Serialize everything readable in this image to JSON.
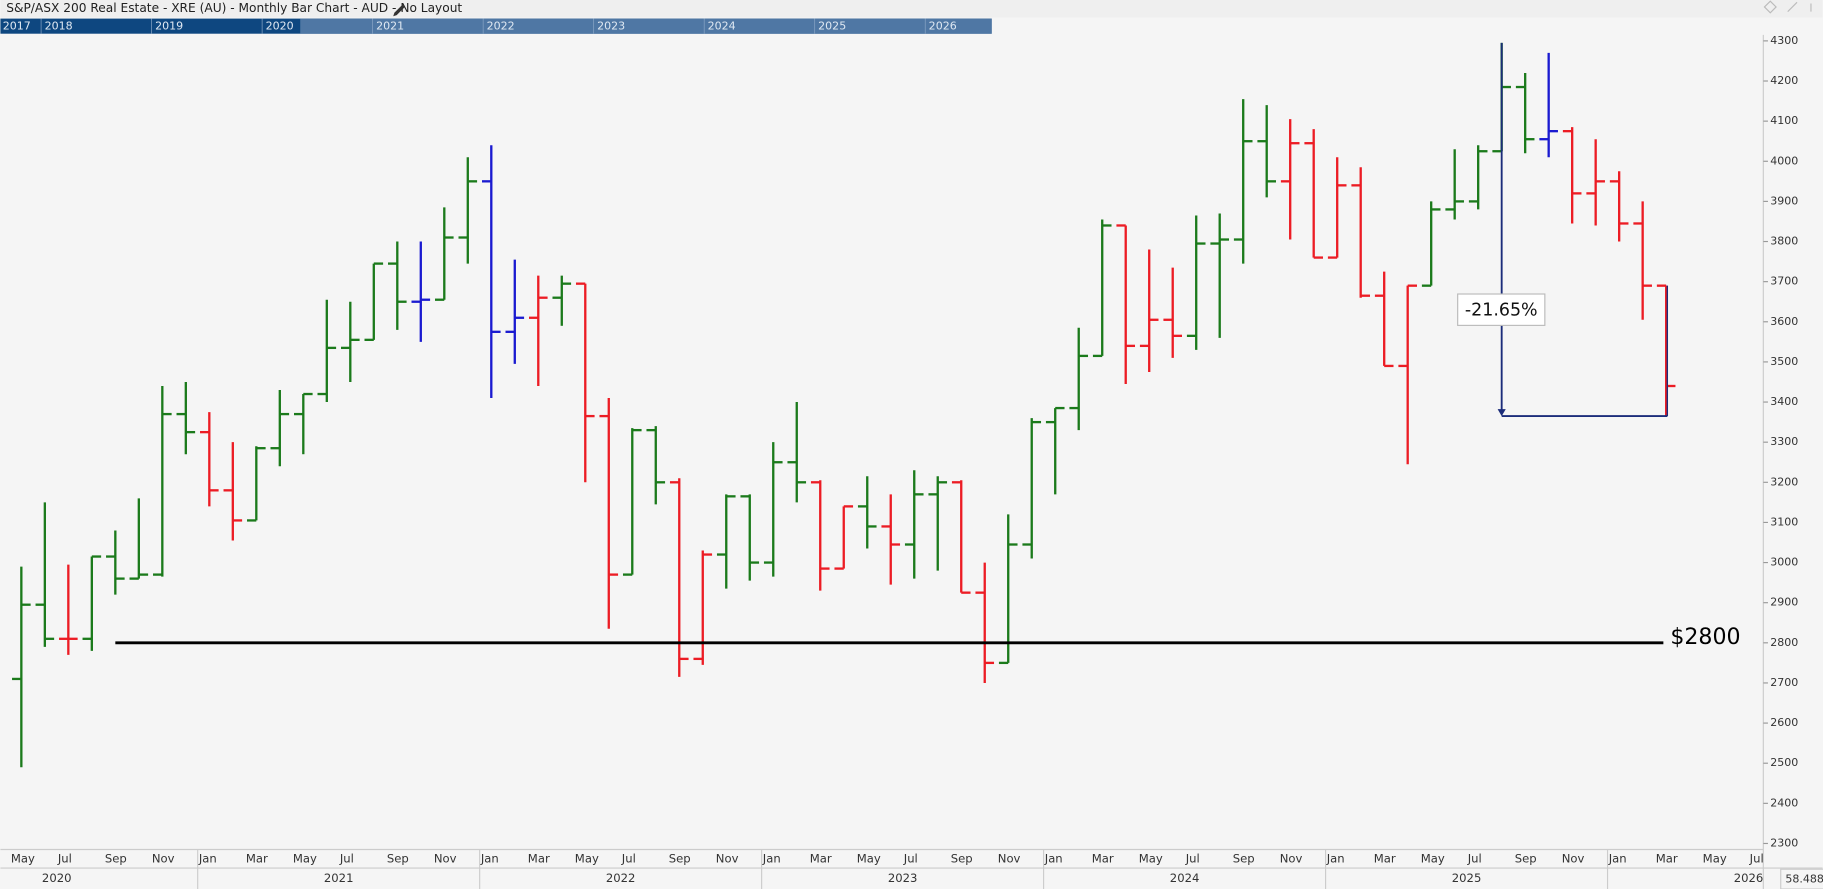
{
  "header": {
    "title": "S&P/ASX 200 Real Estate - XRE (AU) - Monthly Bar Chart - AUD - No Layout",
    "navigator_years": [
      "2017",
      "2018",
      "2019",
      "2020",
      "2021",
      "2022",
      "2023",
      "2024",
      "2025",
      "2026"
    ]
  },
  "chart_data": {
    "type": "ohlc",
    "categories": [
      "May",
      null,
      "Jul",
      null,
      "Sep",
      null,
      "Nov",
      null,
      "Jan",
      null,
      "Mar",
      null,
      "May",
      null,
      "Jul",
      null,
      "Sep",
      null,
      "Nov",
      null,
      "Jan",
      null,
      "Mar",
      null,
      "May",
      null,
      "Jul",
      null,
      "Sep",
      null,
      "Nov",
      null,
      "Jan",
      null,
      "Mar",
      null,
      "May",
      null,
      "Jul",
      null,
      "Sep",
      null,
      "Nov",
      null,
      "Jan",
      null,
      "Mar",
      null,
      "May",
      null,
      "Jul",
      null,
      "Sep",
      null,
      "Nov",
      null,
      "Jan",
      null,
      "Mar",
      null,
      "May",
      null,
      "Jul",
      null,
      "Sep",
      null,
      "Nov",
      null,
      "Jan",
      null,
      "Mar",
      null,
      "May",
      null,
      "Jul"
    ],
    "year_labels": [
      "2020",
      "2021",
      "2022",
      "2023",
      "2024",
      "2025",
      "2026"
    ],
    "open": [
      2710,
      2895,
      2810,
      2810,
      3015,
      2960,
      2970,
      3370,
      3325,
      3180,
      3105,
      3285,
      3370,
      3420,
      3535,
      3555,
      3745,
      3650,
      3655,
      3810,
      3950,
      3575,
      3610,
      3660,
      3695,
      3365,
      2970,
      3330,
      3200,
      2760,
      3020,
      3165,
      3000,
      3250,
      3200,
      2985,
      3140,
      3090,
      3045,
      3170,
      3200,
      2925,
      2750,
      3045,
      3350,
      3385,
      3515,
      3840,
      3540,
      3605,
      3565,
      3795,
      3805,
      4050,
      3950,
      4045,
      3760,
      3940,
      3665,
      3490,
      3690,
      3880,
      3900,
      4025,
      4185,
      4055,
      4075,
      3920,
      3950,
      3845,
      3690,
      null,
      null,
      null,
      null
    ],
    "high": [
      2990,
      3150,
      2995,
      3015,
      3080,
      3160,
      3440,
      3450,
      3375,
      3300,
      3290,
      3430,
      3420,
      3655,
      3650,
      3745,
      3800,
      3800,
      3885,
      4010,
      4040,
      3755,
      3715,
      3715,
      3695,
      3410,
      3335,
      3340,
      3210,
      3030,
      3170,
      3170,
      3300,
      3400,
      3205,
      3140,
      3215,
      3170,
      3230,
      3215,
      3205,
      3000,
      3120,
      3360,
      3385,
      3585,
      3855,
      3840,
      3780,
      3735,
      3865,
      3870,
      4155,
      4140,
      4105,
      4080,
      4010,
      3985,
      3725,
      3690,
      3900,
      4030,
      4040,
      4295,
      4220,
      4270,
      4085,
      4055,
      3975,
      3900,
      3690,
      null,
      null,
      null,
      null
    ],
    "low": [
      2490,
      2790,
      2770,
      2780,
      2920,
      2960,
      2965,
      3270,
      3140,
      3055,
      3105,
      3240,
      3270,
      3400,
      3450,
      3555,
      3580,
      3550,
      3655,
      3745,
      3410,
      3495,
      3440,
      3590,
      3200,
      2835,
      2970,
      3145,
      2715,
      2745,
      2935,
      2955,
      2965,
      3150,
      2930,
      2985,
      3035,
      2945,
      2960,
      2980,
      2925,
      2700,
      2750,
      3010,
      3170,
      3330,
      3515,
      3445,
      3475,
      3510,
      3530,
      3560,
      3745,
      3910,
      3805,
      3760,
      3760,
      3660,
      3490,
      3245,
      3690,
      3855,
      3880,
      4025,
      4020,
      4010,
      3845,
      3840,
      3800,
      3605,
      3365,
      null,
      null,
      null,
      null
    ],
    "close": [
      2895,
      2810,
      2810,
      3015,
      2960,
      2970,
      3370,
      3325,
      3180,
      3105,
      3285,
      3370,
      3420,
      3535,
      3555,
      3745,
      3650,
      3655,
      3810,
      3950,
      3575,
      3610,
      3660,
      3695,
      3365,
      2970,
      3330,
      3200,
      2760,
      3020,
      3165,
      3000,
      3250,
      3200,
      2985,
      3140,
      3090,
      3045,
      3170,
      3200,
      2925,
      2750,
      3045,
      3350,
      3385,
      3515,
      3840,
      3540,
      3605,
      3565,
      3795,
      3805,
      4050,
      3950,
      4045,
      3760,
      3940,
      3665,
      3490,
      3690,
      3880,
      3900,
      4025,
      4185,
      4055,
      4075,
      3920,
      3950,
      3845,
      3690,
      3440,
      null,
      null,
      null,
      null
    ],
    "colors": {
      "g": "#1b7a1b",
      "r": "#ec1c24",
      "b": "#1a1ad0"
    },
    "bar_colors": [
      "g",
      "g",
      "r",
      "g",
      "g",
      "g",
      "g",
      "g",
      "r",
      "r",
      "g",
      "g",
      "g",
      "g",
      "g",
      "g",
      "g",
      "b",
      "g",
      "g",
      "b",
      "b",
      "r",
      "g",
      "r",
      "r",
      "g",
      "g",
      "r",
      "r",
      "g",
      "g",
      "g",
      "g",
      "r",
      "r",
      "g",
      "r",
      "g",
      "g",
      "r",
      "r",
      "g",
      "g",
      "g",
      "g",
      "g",
      "r",
      "r",
      "r",
      "g",
      "g",
      "g",
      "g",
      "r",
      "r",
      "r",
      "r",
      "r",
      "r",
      "g",
      "g",
      "g",
      "g",
      "g",
      "b",
      "r",
      "r",
      "r",
      "r",
      "r",
      null,
      null,
      null,
      null
    ],
    "ylim": [
      2285,
      4315
    ],
    "yticks": [
      2300,
      2400,
      2500,
      2600,
      2700,
      2800,
      2900,
      3000,
      3100,
      3200,
      3300,
      3400,
      3500,
      3600,
      3700,
      3800,
      3900,
      4000,
      4100,
      4200,
      4300
    ],
    "hline": {
      "value": 2800,
      "label": "$2800"
    },
    "measure": {
      "from": 4295,
      "to": 3365,
      "label": "-21.65%"
    },
    "corner_label": "58.4882"
  }
}
